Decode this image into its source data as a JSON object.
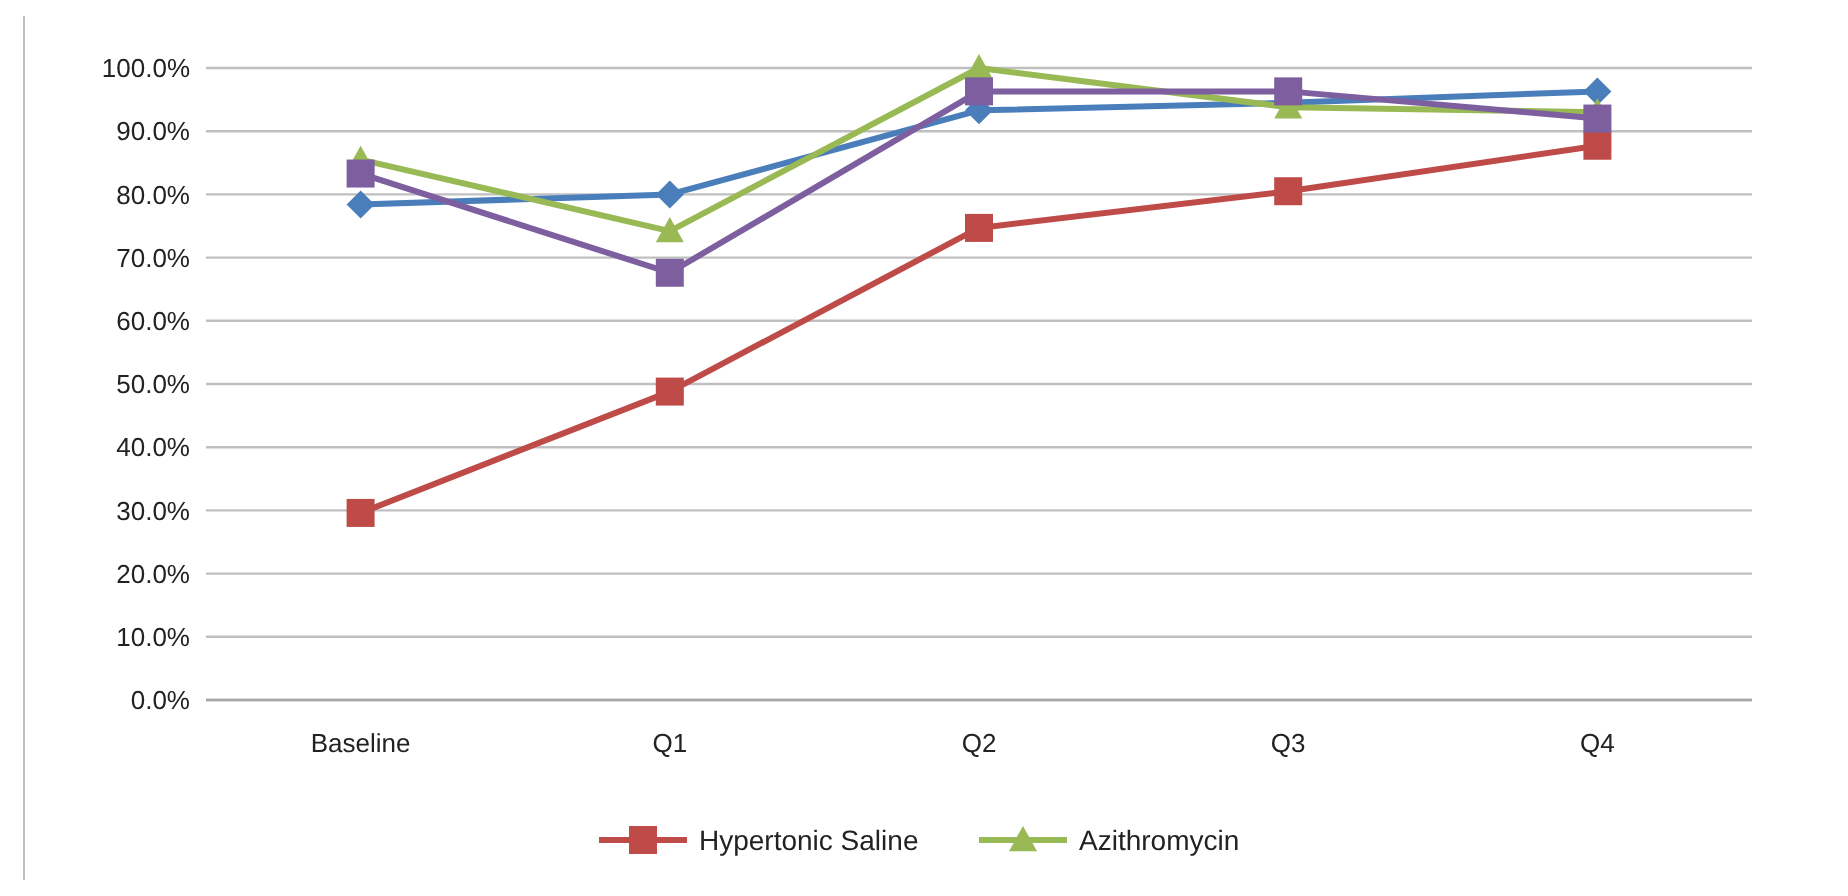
{
  "chart_data": {
    "type": "line",
    "categories": [
      "Baseline",
      "Q1",
      "Q2",
      "Q3",
      "Q4"
    ],
    "series": [
      {
        "color": "#4a7ebb",
        "marker": "diamond",
        "values": [
          78.4,
          80,
          93.3,
          94.5,
          96.3
        ]
      },
      {
        "name": "Hypertonic Saline",
        "color": "#be4b48",
        "marker": "square",
        "values": [
          29.6,
          48.8,
          74.7,
          80.5,
          87.7
        ]
      },
      {
        "name": "Azithromycin",
        "color": "#98b954",
        "marker": "triangle",
        "values": [
          85.5,
          74.2,
          100,
          93.8,
          93
        ]
      },
      {
        "color": "#7d5fa0",
        "marker": "square",
        "values": [
          83.3,
          67.6,
          96.3,
          96.3,
          92
        ]
      }
    ],
    "ylim": [
      0,
      100
    ],
    "yticks": [
      {
        "value": 0,
        "label": "0.0%"
      },
      {
        "value": 10,
        "label": "10.0%"
      },
      {
        "value": 20,
        "label": "20.0%"
      },
      {
        "value": 30,
        "label": "30.0%"
      },
      {
        "value": 40,
        "label": "40.0%"
      },
      {
        "value": 50,
        "label": "50.0%"
      },
      {
        "value": 60,
        "label": "60.0%"
      },
      {
        "value": 70,
        "label": "70.0%"
      },
      {
        "value": 80,
        "label": "80.0%"
      },
      {
        "value": 90,
        "label": "90.0%"
      },
      {
        "value": 100,
        "label": "100.0%"
      }
    ],
    "grid": "y",
    "legend": "bottom",
    "line_style": "solid"
  }
}
